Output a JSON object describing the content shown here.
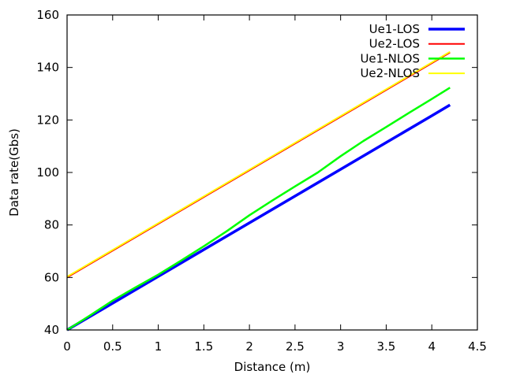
{
  "chart_data": {
    "type": "line",
    "title": "",
    "xlabel": "Distance (m)",
    "ylabel": "Data rate(Gbs)",
    "xlim": [
      0,
      4.5
    ],
    "ylim": [
      40,
      160
    ],
    "x_ticks": [
      0,
      0.5,
      1,
      1.5,
      2,
      2.5,
      3,
      3.5,
      4,
      4.5
    ],
    "x_tick_labels": [
      "0",
      "0.5",
      "1",
      "1.5",
      "2",
      "2.5",
      "3",
      "3.5",
      "4",
      "4.5"
    ],
    "y_ticks": [
      40,
      60,
      80,
      100,
      120,
      140,
      160
    ],
    "y_tick_labels": [
      "40",
      "60",
      "80",
      "100",
      "120",
      "140",
      "160"
    ],
    "grid": false,
    "legend_position": "top-right",
    "series": [
      {
        "name": "Ue1-LOS",
        "color": "#0000ff",
        "x": [
          0,
          0.5,
          1,
          1.5,
          2,
          2.5,
          3,
          3.5,
          4,
          4.2
        ],
        "y": [
          40,
          50.2,
          60.4,
          70.6,
          80.8,
          91,
          101.2,
          111.4,
          121.6,
          125.7
        ]
      },
      {
        "name": "Ue2-LOS",
        "color": "#ff0000",
        "x": [
          0,
          0.5,
          1,
          1.5,
          2,
          2.5,
          3,
          3.5,
          4,
          4.2
        ],
        "y": [
          60,
          70.2,
          80.4,
          90.6,
          100.8,
          111,
          121.2,
          131.4,
          141.6,
          145.7
        ]
      },
      {
        "name": "Ue1-NLOS",
        "color": "#00ff00",
        "x": [
          0,
          0.25,
          0.5,
          0.75,
          1,
          1.25,
          1.5,
          1.75,
          2,
          2.25,
          2.5,
          2.75,
          3,
          3.25,
          3.5,
          3.75,
          4,
          4.2
        ],
        "y": [
          40,
          45.5,
          51.2,
          56.2,
          61.1,
          66.4,
          71.9,
          77.6,
          83.7,
          89.3,
          94.7,
          100,
          106.2,
          112,
          117.3,
          122.7,
          128,
          132.3
        ]
      },
      {
        "name": "Ue2-NLOS",
        "color": "#ffff00",
        "x": [
          0,
          0.5,
          1,
          1.5,
          2,
          2.5,
          3,
          3.5,
          4,
          4.2
        ],
        "y": [
          60.3,
          70.5,
          80.7,
          90.9,
          101.1,
          111.3,
          121.5,
          131.7,
          141.9,
          146
        ]
      }
    ]
  }
}
